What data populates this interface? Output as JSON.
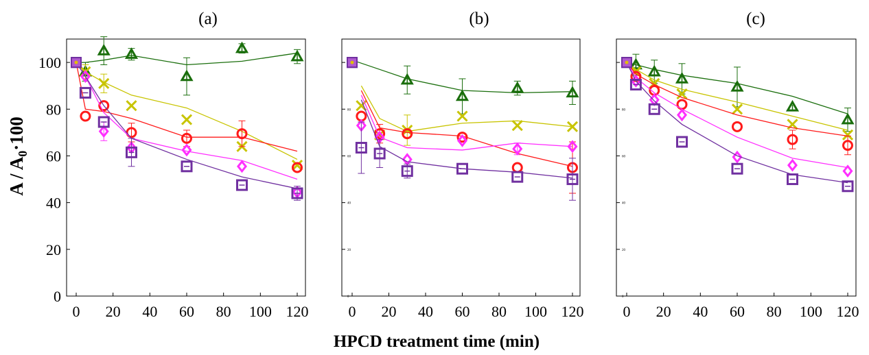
{
  "figure": {
    "ylabel_main": "A / A",
    "ylabel_sub": "0",
    "ylabel_tail": "·100",
    "xlabel": "HPCD treatment time (min)"
  },
  "series_styles": [
    {
      "key": "triangle",
      "marker": "triangle",
      "color": "#1a6e0c"
    },
    {
      "key": "cross",
      "marker": "cross",
      "color": "#c8c400"
    },
    {
      "key": "circle",
      "marker": "circle",
      "color": "#ff1a1a"
    },
    {
      "key": "diamond",
      "marker": "diamond",
      "color": "#ff2fff"
    },
    {
      "key": "square",
      "marker": "square",
      "color": "#7030a0"
    }
  ],
  "chart_data": [
    {
      "type": "scatter",
      "title": "(a)",
      "xlabel": "",
      "ylabel": "",
      "xlim": [
        0,
        120
      ],
      "ylim": [
        0,
        110
      ],
      "xticks": [
        0,
        20,
        40,
        60,
        80,
        100,
        120
      ],
      "yticks": [
        0,
        20,
        40,
        60,
        80,
        100
      ],
      "x": [
        0,
        5,
        15,
        30,
        60,
        90,
        120
      ],
      "series": [
        {
          "marker": "triangle",
          "values": [
            100,
            96,
            105,
            103.5,
            94,
            106,
            102.5
          ],
          "errors": [
            0,
            4,
            6,
            2.5,
            8,
            2,
            3
          ],
          "fit_x": [
            0,
            5,
            15,
            30,
            60,
            90,
            120
          ],
          "fit_y": [
            100,
            100,
            101,
            103,
            99,
            100.5,
            104
          ]
        },
        {
          "marker": "cross",
          "values": [
            100,
            96,
            91,
            81.5,
            75.5,
            64,
            56
          ],
          "errors": [
            0,
            3,
            4,
            0,
            0,
            0,
            0
          ],
          "fit_x": [
            0,
            5,
            15,
            30,
            60,
            90,
            120
          ],
          "fit_y": [
            100,
            96,
            91.5,
            86,
            80.5,
            70.5,
            58.5
          ]
        },
        {
          "marker": "circle",
          "values": [
            100,
            77,
            81.5,
            70,
            67.5,
            69.5,
            55
          ],
          "errors": [
            0,
            0,
            0,
            4,
            3.5,
            5.5,
            0
          ],
          "fit_x": [
            0,
            5,
            15,
            30,
            60,
            90,
            120
          ],
          "fit_y": [
            100,
            80,
            79,
            76,
            68,
            68,
            62
          ]
        },
        {
          "marker": "diamond",
          "values": [
            100,
            94,
            70.5,
            63.5,
            62.5,
            55.5,
            44.5
          ],
          "errors": [
            0,
            0,
            4,
            0,
            0,
            0,
            0
          ],
          "fit_x": [
            0,
            5,
            15,
            30,
            60,
            90,
            120
          ],
          "fit_y": [
            100,
            94,
            78.5,
            67.5,
            62,
            58,
            50
          ]
        },
        {
          "marker": "square",
          "values": [
            100,
            87,
            74.5,
            61.5,
            55.5,
            47.5,
            44
          ],
          "errors": [
            0,
            0,
            0,
            6,
            0,
            0,
            3
          ],
          "fit_x": [
            0,
            5,
            15,
            30,
            60,
            90,
            120
          ],
          "fit_y": [
            100,
            94,
            81.5,
            67.5,
            58.5,
            51,
            46
          ]
        }
      ]
    },
    {
      "type": "scatter",
      "title": "(b)",
      "xlabel": "",
      "ylabel": "",
      "xlim": [
        0,
        120
      ],
      "ylim": [
        0,
        110
      ],
      "xticks": [
        0,
        20,
        40,
        60,
        80,
        100,
        120
      ],
      "yticks": [
        0,
        20,
        40,
        60,
        80,
        100
      ],
      "x": [
        0,
        5,
        15,
        30,
        60,
        90,
        120
      ],
      "series": [
        {
          "marker": "triangle",
          "values": [
            100,
            null,
            null,
            92.5,
            85.5,
            89,
            87
          ],
          "errors": [
            0,
            0,
            0,
            6,
            7.5,
            3,
            5
          ],
          "fit_x": [
            0,
            15,
            30,
            60,
            90,
            120
          ],
          "fit_y": [
            101,
            97,
            93,
            88,
            87,
            87.5
          ]
        },
        {
          "marker": "cross",
          "values": [
            100,
            81.5,
            69,
            71,
            77,
            73,
            72.5
          ],
          "errors": [
            0,
            0,
            0,
            6.5,
            0,
            0,
            0
          ],
          "fit_x": [
            5,
            15,
            30,
            60,
            90,
            120
          ],
          "fit_y": [
            90,
            76,
            70.5,
            74,
            75,
            72.5
          ]
        },
        {
          "marker": "circle",
          "values": [
            100,
            77,
            69.5,
            69.5,
            68,
            55,
            55
          ],
          "errors": [
            0,
            0,
            4,
            0,
            0,
            0,
            11
          ],
          "fit_x": [
            5,
            15,
            30,
            60,
            90,
            120
          ],
          "fit_y": [
            88,
            72,
            70,
            68.5,
            61,
            55.5
          ]
        },
        {
          "marker": "diamond",
          "values": [
            100,
            73,
            68,
            58.5,
            66.5,
            63,
            64
          ],
          "errors": [
            0,
            0,
            0,
            0,
            0,
            2.5,
            0
          ],
          "fit_x": [
            5,
            15,
            30,
            60,
            90,
            120
          ],
          "fit_y": [
            86,
            68,
            63.5,
            62.5,
            65.5,
            64
          ]
        },
        {
          "marker": "square",
          "values": [
            100,
            63.5,
            61,
            53.5,
            54.5,
            51,
            50
          ],
          "errors": [
            0,
            11,
            6,
            3,
            0,
            0,
            9
          ],
          "fit_x": [
            5,
            15,
            30,
            60,
            90,
            120
          ],
          "fit_y": [
            84,
            64,
            57.5,
            54.5,
            53,
            50.5
          ]
        }
      ]
    },
    {
      "type": "scatter",
      "title": "(c)",
      "xlabel": "",
      "ylabel": "",
      "xlim": [
        0,
        120
      ],
      "ylim": [
        0,
        110
      ],
      "xticks": [
        0,
        20,
        40,
        60,
        80,
        100,
        120
      ],
      "yticks": [
        0,
        20,
        40,
        60,
        80,
        100
      ],
      "x": [
        0,
        5,
        15,
        30,
        60,
        90,
        120
      ],
      "series": [
        {
          "marker": "triangle",
          "values": [
            100,
            99,
            96,
            93,
            89.5,
            81,
            75.5
          ],
          "errors": [
            0,
            4.5,
            5,
            6.5,
            8.5,
            0,
            5
          ],
          "fit_x": [
            0,
            5,
            15,
            30,
            60,
            90,
            120
          ],
          "fit_y": [
            100,
            99,
            97,
            94.5,
            91,
            85.5,
            78
          ]
        },
        {
          "marker": "cross",
          "values": [
            100,
            96,
            91,
            86.5,
            80,
            73.5,
            69
          ],
          "errors": [
            0,
            0,
            0,
            0,
            0,
            0,
            0
          ],
          "fit_x": [
            0,
            5,
            15,
            30,
            60,
            90,
            120
          ],
          "fit_y": [
            100,
            97,
            92.5,
            88.5,
            83,
            77,
            71
          ]
        },
        {
          "marker": "circle",
          "values": [
            100,
            94,
            88,
            82,
            72.5,
            67,
            64.5
          ],
          "errors": [
            0,
            0,
            0,
            0,
            0,
            4,
            4
          ],
          "fit_x": [
            0,
            5,
            15,
            30,
            60,
            90,
            120
          ],
          "fit_y": [
            100,
            95,
            90.5,
            85,
            77.5,
            72,
            68.5
          ]
        },
        {
          "marker": "diamond",
          "values": [
            100,
            92,
            84,
            77.5,
            59.5,
            56,
            53.5
          ],
          "errors": [
            0,
            0,
            0,
            0,
            0,
            0,
            0
          ],
          "fit_x": [
            0,
            5,
            15,
            30,
            60,
            90,
            120
          ],
          "fit_y": [
            100,
            93.5,
            87,
            80,
            68,
            59,
            55
          ]
        },
        {
          "marker": "square",
          "values": [
            100,
            90.5,
            80,
            66,
            54.5,
            50,
            47
          ],
          "errors": [
            0,
            0,
            0,
            0,
            0,
            0,
            0
          ],
          "fit_x": [
            0,
            5,
            15,
            30,
            60,
            90,
            120
          ],
          "fit_y": [
            100,
            92,
            83.5,
            73.5,
            60,
            52,
            48.5
          ]
        }
      ]
    }
  ]
}
